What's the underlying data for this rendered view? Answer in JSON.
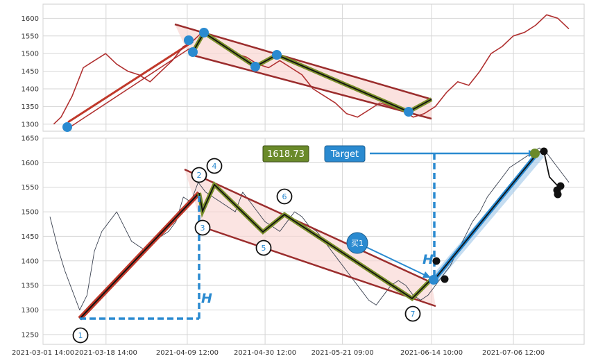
{
  "colors": {
    "price_line": "#b03030",
    "price_line_bottom": "#3a4150",
    "trend_red": "#c0392b",
    "channel_dark_red": "#9b2d2d",
    "channel_fill": "#f9d6d2",
    "zigzag_green": "#7a8f2a",
    "zigzag_black": "#111111",
    "marker_blue": "#2a8ad0",
    "dashed_blue": "#2a8ad0",
    "value_box_green": "#6a8a2a",
    "target_box_blue": "#2a8ad0",
    "impulse_blue": "#9fc7e8"
  },
  "chart_data": [
    {
      "type": "line",
      "panel": "top",
      "y_ticks": [
        1300,
        1350,
        1400,
        1450,
        1500,
        1550,
        1600
      ],
      "ylim": [
        1280,
        1640
      ],
      "series": [
        {
          "x": [
            "2021-03-04 11:00",
            "2021-03-06 11:00",
            "2021-03-09 11:00",
            "2021-03-12 11:00",
            "2021-03-15 11:00",
            "2021-03-18 11:00",
            "2021-03-21 11:00",
            "2021-03-24 11:00",
            "2021-03-27 11:00",
            "2021-03-30 11:00",
            "2021-04-02 11:00",
            "2021-04-05 11:00",
            "2021-04-08 11:00",
            "2021-04-10 11:00",
            "2021-04-13 11:00",
            "2021-04-16 11:00",
            "2021-04-19 11:00",
            "2021-04-22 11:00",
            "2021-04-25 11:00",
            "2021-04-28 11:00",
            "2021-05-01 11:00",
            "2021-05-04 11:00",
            "2021-05-07 11:00",
            "2021-05-10 11:00",
            "2021-05-13 11:00",
            "2021-05-16 11:00",
            "2021-05-19 11:00",
            "2021-05-22 11:00",
            "2021-05-25 11:00",
            "2021-05-28 11:00",
            "2021-05-31 11:00",
            "2021-06-03 11:00",
            "2021-06-06 11:00",
            "2021-06-09 11:00",
            "2021-06-12 11:00",
            "2021-06-15 11:00",
            "2021-06-18 11:00",
            "2021-06-21 11:00",
            "2021-06-24 11:00",
            "2021-06-27 11:00",
            "2021-06-30 11:00",
            "2021-07-03 11:00",
            "2021-07-06 11:00",
            "2021-07-09 11:00",
            "2021-07-12 11:00",
            "2021-07-15 11:00",
            "2021-07-18 11:00",
            "2021-07-21 11:00"
          ],
          "y": [
            1300,
            1320,
            1380,
            1460,
            1480,
            1500,
            1470,
            1450,
            1440,
            1420,
            1450,
            1480,
            1520,
            1530,
            1560,
            1540,
            1520,
            1500,
            1490,
            1470,
            1460,
            1480,
            1460,
            1440,
            1400,
            1380,
            1360,
            1330,
            1320,
            1340,
            1360,
            1350,
            1340,
            1320,
            1330,
            1350,
            1390,
            1420,
            1410,
            1450,
            1500,
            1520,
            1550,
            1560,
            1580,
            1610,
            1600,
            1570
          ]
        }
      ]
    },
    {
      "type": "line",
      "panel": "bottom",
      "y_ticks": [
        1250,
        1300,
        1350,
        1400,
        1450,
        1500,
        1550,
        1600,
        1650
      ],
      "ylim": [
        1230,
        1650
      ],
      "x_ticks": [
        "2021-03-01 14:00",
        "2021-03-18 14:00",
        "2021-04-09 12:00",
        "2021-04-30 12:00",
        "2021-05-21 09:00",
        "2021-06-14 10:00",
        "2021-07-06 12:00"
      ],
      "series": [
        {
          "x": [
            "2021-03-03 11:00",
            "2021-03-05 11:00",
            "2021-03-07 11:00",
            "2021-03-09 11:00",
            "2021-03-11 11:00",
            "2021-03-13 11:00",
            "2021-03-15 11:00",
            "2021-03-17 11:00",
            "2021-03-19 11:00",
            "2021-03-21 11:00",
            "2021-03-23 11:00",
            "2021-03-25 11:00",
            "2021-03-27 11:00",
            "2021-03-29 11:00",
            "2021-03-31 11:00",
            "2021-04-02 11:00",
            "2021-04-04 11:00",
            "2021-04-06 11:00",
            "2021-04-08 11:00",
            "2021-04-10 11:00",
            "2021-04-12 11:00",
            "2021-04-14 11:00",
            "2021-04-16 11:00",
            "2021-04-18 11:00",
            "2021-04-20 11:00",
            "2021-04-22 11:00",
            "2021-04-24 11:00",
            "2021-04-26 11:00",
            "2021-04-28 11:00",
            "2021-04-30 11:00",
            "2021-05-02 11:00",
            "2021-05-04 11:00",
            "2021-05-06 11:00",
            "2021-05-08 11:00",
            "2021-05-10 11:00",
            "2021-05-12 11:00",
            "2021-05-14 11:00",
            "2021-05-16 11:00",
            "2021-05-18 11:00",
            "2021-05-20 11:00",
            "2021-05-22 11:00",
            "2021-05-24 11:00",
            "2021-05-26 11:00",
            "2021-05-28 11:00",
            "2021-05-30 11:00",
            "2021-06-01 11:00",
            "2021-06-03 11:00",
            "2021-06-05 11:00",
            "2021-06-07 11:00",
            "2021-06-09 11:00",
            "2021-06-11 11:00",
            "2021-06-13 11:00",
            "2021-06-15 11:00",
            "2021-06-17 11:00",
            "2021-06-19 11:00",
            "2021-06-21 11:00",
            "2021-06-23 11:00",
            "2021-06-25 11:00",
            "2021-06-27 11:00",
            "2021-06-29 11:00",
            "2021-07-01 11:00",
            "2021-07-03 11:00",
            "2021-07-05 11:00",
            "2021-07-07 11:00",
            "2021-07-09 11:00",
            "2021-07-11 11:00",
            "2021-07-13 11:00",
            "2021-07-15 11:00",
            "2021-07-17 11:00",
            "2021-07-19 11:00",
            "2021-07-21 11:00"
          ],
          "y": [
            1490,
            1430,
            1380,
            1340,
            1300,
            1330,
            1420,
            1460,
            1480,
            1500,
            1470,
            1440,
            1430,
            1420,
            1440,
            1450,
            1460,
            1480,
            1530,
            1520,
            1560,
            1540,
            1530,
            1520,
            1510,
            1500,
            1540,
            1520,
            1500,
            1480,
            1470,
            1460,
            1480,
            1500,
            1490,
            1470,
            1460,
            1440,
            1420,
            1400,
            1380,
            1360,
            1340,
            1320,
            1310,
            1330,
            1350,
            1360,
            1350,
            1330,
            1320,
            1330,
            1350,
            1370,
            1390,
            1420,
            1450,
            1480,
            1500,
            1530,
            1550,
            1570,
            1590,
            1600,
            1610,
            1620,
            1630,
            1620,
            1600,
            1580,
            1560
          ]
        }
      ]
    }
  ],
  "pattern": {
    "point_labels": [
      "1",
      "2",
      "3",
      "4",
      "5",
      "6",
      "7"
    ],
    "h_label": "H",
    "value_box": "1618.73",
    "target_label": "Target",
    "buy_label": "买1"
  }
}
